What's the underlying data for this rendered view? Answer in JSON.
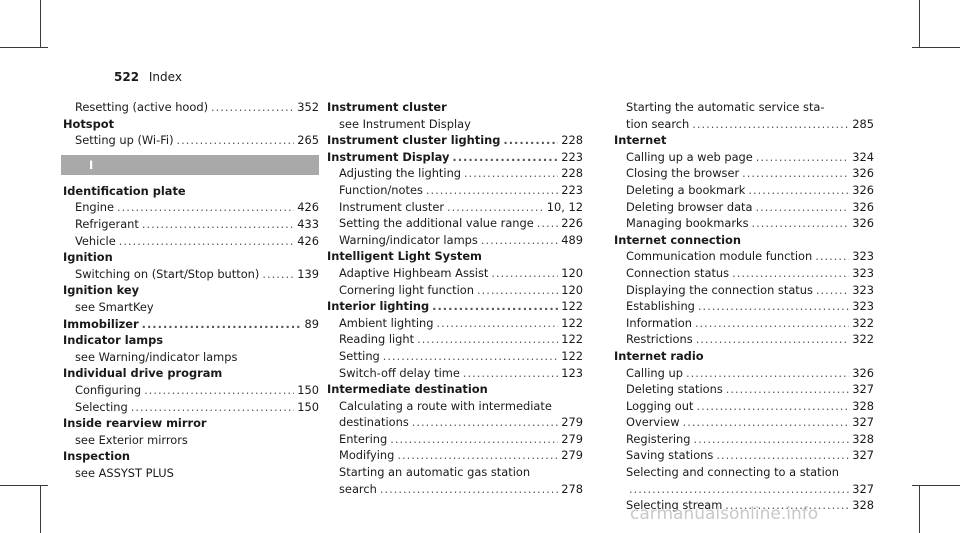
{
  "header": {
    "page_number": "522",
    "title": "Index"
  },
  "section_letter": "I",
  "columns": [
    [
      {
        "type": "sub",
        "text": "Resetting (active hood)",
        "page": "352"
      },
      {
        "type": "head",
        "text": "Hotspot"
      },
      {
        "type": "sub",
        "text": "Setting up (Wi-Fi)",
        "page": "265"
      },
      {
        "type": "letter"
      },
      {
        "type": "head",
        "text": "Identification plate"
      },
      {
        "type": "sub",
        "text": "Engine",
        "page": "426"
      },
      {
        "type": "sub",
        "text": "Refrigerant",
        "page": "433"
      },
      {
        "type": "sub",
        "text": "Vehicle",
        "page": "426"
      },
      {
        "type": "head",
        "text": "Ignition"
      },
      {
        "type": "sub",
        "text": "Switching on (Start/Stop button)",
        "page": "139"
      },
      {
        "type": "head",
        "text": "Ignition key"
      },
      {
        "type": "cross",
        "text": "see SmartKey"
      },
      {
        "type": "head",
        "text": "Immobilizer",
        "page": "89"
      },
      {
        "type": "head",
        "text": "Indicator lamps"
      },
      {
        "type": "cross",
        "text": "see Warning/indicator lamps"
      },
      {
        "type": "head",
        "text": "Individual drive program"
      },
      {
        "type": "sub",
        "text": "Configuring",
        "page": "150"
      },
      {
        "type": "sub",
        "text": "Selecting",
        "page": "150"
      },
      {
        "type": "head",
        "text": "Inside rearview mirror"
      },
      {
        "type": "cross",
        "text": "see Exterior mirrors"
      },
      {
        "type": "head",
        "text": "Inspection"
      },
      {
        "type": "cross",
        "text": "see ASSYST PLUS"
      }
    ],
    [
      {
        "type": "head",
        "text": "Instrument cluster"
      },
      {
        "type": "cross",
        "text": "see Instrument Display"
      },
      {
        "type": "head",
        "text": "Instrument cluster lighting",
        "page": "228"
      },
      {
        "type": "head",
        "text": "Instrument Display",
        "page": "223"
      },
      {
        "type": "sub",
        "text": "Adjusting the lighting",
        "page": "228"
      },
      {
        "type": "sub",
        "text": "Function/notes",
        "page": "223"
      },
      {
        "type": "sub",
        "text": "Instrument cluster",
        "page": "10, 12"
      },
      {
        "type": "sub",
        "text": "Setting the additional value range",
        "page": "226"
      },
      {
        "type": "sub",
        "text": "Warning/indicator lamps",
        "page": "489"
      },
      {
        "type": "head",
        "text": "Intelligent Light System"
      },
      {
        "type": "sub",
        "text": "Adaptive Highbeam Assist",
        "page": "120"
      },
      {
        "type": "sub",
        "text": "Cornering light function",
        "page": "120"
      },
      {
        "type": "head",
        "text": "Interior lighting",
        "page": "122"
      },
      {
        "type": "sub",
        "text": "Ambient lighting",
        "page": "122"
      },
      {
        "type": "sub",
        "text": "Reading light",
        "page": "122"
      },
      {
        "type": "sub",
        "text": "Setting",
        "page": "122"
      },
      {
        "type": "sub",
        "text": "Switch-off delay time",
        "page": "123"
      },
      {
        "type": "head",
        "text": "Intermediate destination"
      },
      {
        "type": "cont",
        "text": "Calculating a route with intermediate"
      },
      {
        "type": "sub",
        "text": "destinations",
        "page": "279"
      },
      {
        "type": "sub",
        "text": "Entering",
        "page": "279"
      },
      {
        "type": "sub",
        "text": "Modifying",
        "page": "279"
      },
      {
        "type": "cont",
        "text": "Starting an automatic gas station"
      },
      {
        "type": "sub",
        "text": "search",
        "page": "278"
      }
    ],
    [
      {
        "type": "cont",
        "text": "Starting the automatic service sta-"
      },
      {
        "type": "sub",
        "text": "tion search",
        "page": "285"
      },
      {
        "type": "head",
        "text": "Internet"
      },
      {
        "type": "sub",
        "text": "Calling up a web page",
        "page": "324"
      },
      {
        "type": "sub",
        "text": "Closing the browser",
        "page": "326"
      },
      {
        "type": "sub",
        "text": "Deleting a bookmark",
        "page": "326"
      },
      {
        "type": "sub",
        "text": "Deleting browser data",
        "page": "326"
      },
      {
        "type": "sub",
        "text": "Managing bookmarks",
        "page": "326"
      },
      {
        "type": "head",
        "text": "Internet connection"
      },
      {
        "type": "sub",
        "text": "Communication module function",
        "page": "323"
      },
      {
        "type": "sub",
        "text": "Connection status",
        "page": "323"
      },
      {
        "type": "sub",
        "text": "Displaying the connection status",
        "page": "323"
      },
      {
        "type": "sub",
        "text": "Establishing",
        "page": "323"
      },
      {
        "type": "sub",
        "text": "Information",
        "page": "322"
      },
      {
        "type": "sub",
        "text": "Restrictions",
        "page": "322"
      },
      {
        "type": "head",
        "text": "Internet radio"
      },
      {
        "type": "sub",
        "text": "Calling up",
        "page": "326"
      },
      {
        "type": "sub",
        "text": "Deleting stations",
        "page": "327"
      },
      {
        "type": "sub",
        "text": "Logging out",
        "page": "328"
      },
      {
        "type": "sub",
        "text": "Overview",
        "page": "327"
      },
      {
        "type": "sub",
        "text": "Registering",
        "page": "328"
      },
      {
        "type": "sub",
        "text": "Saving stations",
        "page": "327"
      },
      {
        "type": "cont",
        "text": "Selecting and connecting to a station"
      },
      {
        "type": "sub",
        "text": "",
        "page": "327"
      },
      {
        "type": "sub",
        "text": "Selecting stream",
        "page": "328"
      }
    ]
  ],
  "footer": {
    "watermark": "carmanualsonline.info"
  }
}
